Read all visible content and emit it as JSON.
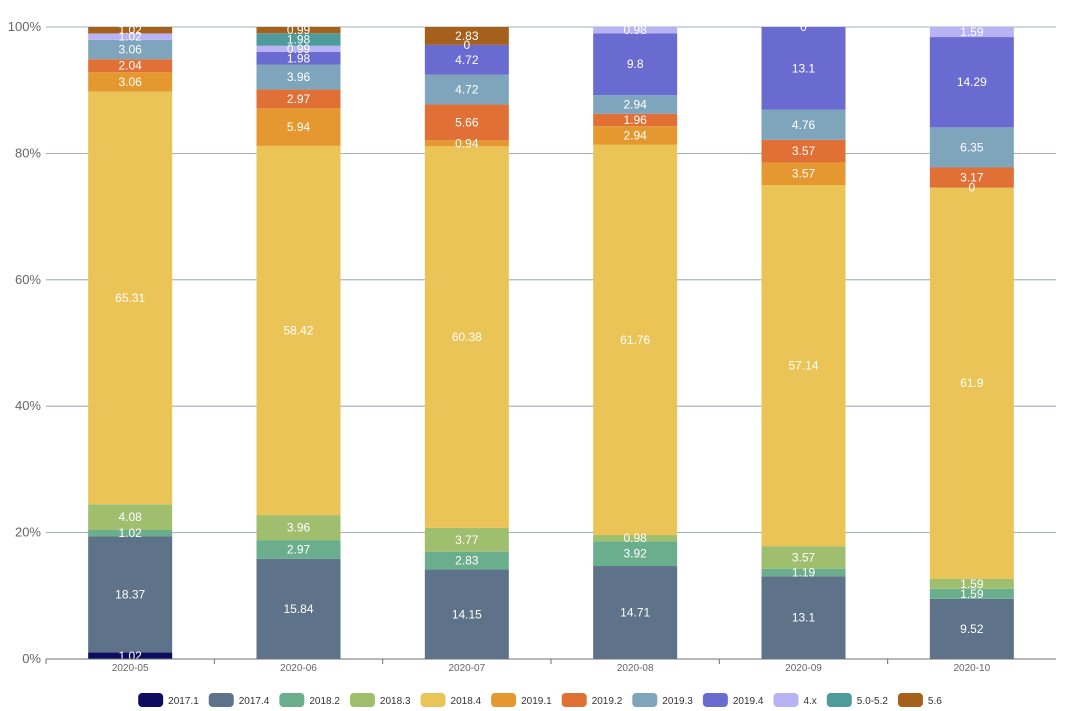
{
  "chart_data": {
    "type": "bar",
    "stacked": true,
    "normalized": true,
    "categories": [
      "2020-05",
      "2020-06",
      "2020-07",
      "2020-08",
      "2020-09",
      "2020-10"
    ],
    "ylim": [
      0,
      100
    ],
    "y_ticks": [
      "0%",
      "20%",
      "40%",
      "60%",
      "80%",
      "100%"
    ],
    "grid": true,
    "legend_position": "bottom",
    "series": [
      {
        "name": "2017.1",
        "color": "#0d0d5f",
        "values": [
          1.02,
          0,
          0,
          0,
          0,
          0
        ]
      },
      {
        "name": "2017.4",
        "color": "#5e7289",
        "values": [
          18.37,
          15.84,
          14.15,
          14.71,
          13.1,
          9.52
        ]
      },
      {
        "name": "2018.2",
        "color": "#6aae8e",
        "values": [
          1.02,
          2.97,
          2.83,
          3.92,
          1.19,
          1.59
        ]
      },
      {
        "name": "2018.3",
        "color": "#9fbf6f",
        "values": [
          4.08,
          3.96,
          3.77,
          0.98,
          3.57,
          1.59
        ]
      },
      {
        "name": "2018.4",
        "color": "#ebc457",
        "values": [
          65.31,
          58.42,
          60.38,
          61.76,
          57.14,
          61.9
        ]
      },
      {
        "name": "2019.1",
        "color": "#e5982f",
        "values": [
          3.06,
          5.94,
          0.94,
          2.94,
          3.57,
          0
        ]
      },
      {
        "name": "2019.2",
        "color": "#e07035",
        "values": [
          2.04,
          2.97,
          5.66,
          1.96,
          3.57,
          3.17
        ]
      },
      {
        "name": "2019.3",
        "color": "#7fa5bd",
        "values": [
          3.06,
          3.96,
          4.72,
          2.94,
          4.76,
          6.35
        ]
      },
      {
        "name": "2019.4",
        "color": "#6a6bd0",
        "values": [
          0,
          1.98,
          4.72,
          9.8,
          13.1,
          14.29
        ]
      },
      {
        "name": "4.x",
        "color": "#b7b3f5",
        "values": [
          1.02,
          0.99,
          0,
          0.98,
          0,
          1.59
        ]
      },
      {
        "name": "5.0-5.2",
        "color": "#4f9a9a",
        "values": [
          0,
          1.98,
          0,
          0,
          0,
          0
        ]
      },
      {
        "name": "5.6",
        "color": "#a5601c",
        "values": [
          1.02,
          0.99,
          2.83,
          0,
          0,
          0
        ]
      }
    ],
    "value_labels": [
      [
        "1.02",
        "18.37",
        "1.02",
        "4.08",
        "65.31",
        "3.06",
        "2.04",
        "3.06",
        "",
        "1.02",
        "",
        "1.02"
      ],
      [
        "",
        "15.84",
        "2.97",
        "3.96",
        "58.42",
        "5.94",
        "2.97",
        "3.96",
        "1.98",
        "0.99",
        "1.98",
        "0.99"
      ],
      [
        "",
        "14.15",
        "2.83",
        "3.77",
        "60.38",
        "0.94",
        "5.66",
        "4.72",
        "4.72",
        "",
        "0",
        "2.83"
      ],
      [
        "",
        "14.71",
        "3.92",
        "0.98",
        "61.76",
        "2.94",
        "1.96",
        "2.94",
        "9.8",
        "0.98",
        "",
        ""
      ],
      [
        "",
        "13.1",
        "1.19",
        "3.57",
        "57.14",
        "3.57",
        "3.57",
        "4.76",
        "13.1",
        "0",
        "",
        ""
      ],
      [
        "",
        "9.52",
        "1.59",
        "1.59",
        "61.9",
        "0",
        "3.17",
        "6.35",
        "14.29",
        "1.59",
        "",
        ""
      ]
    ]
  }
}
